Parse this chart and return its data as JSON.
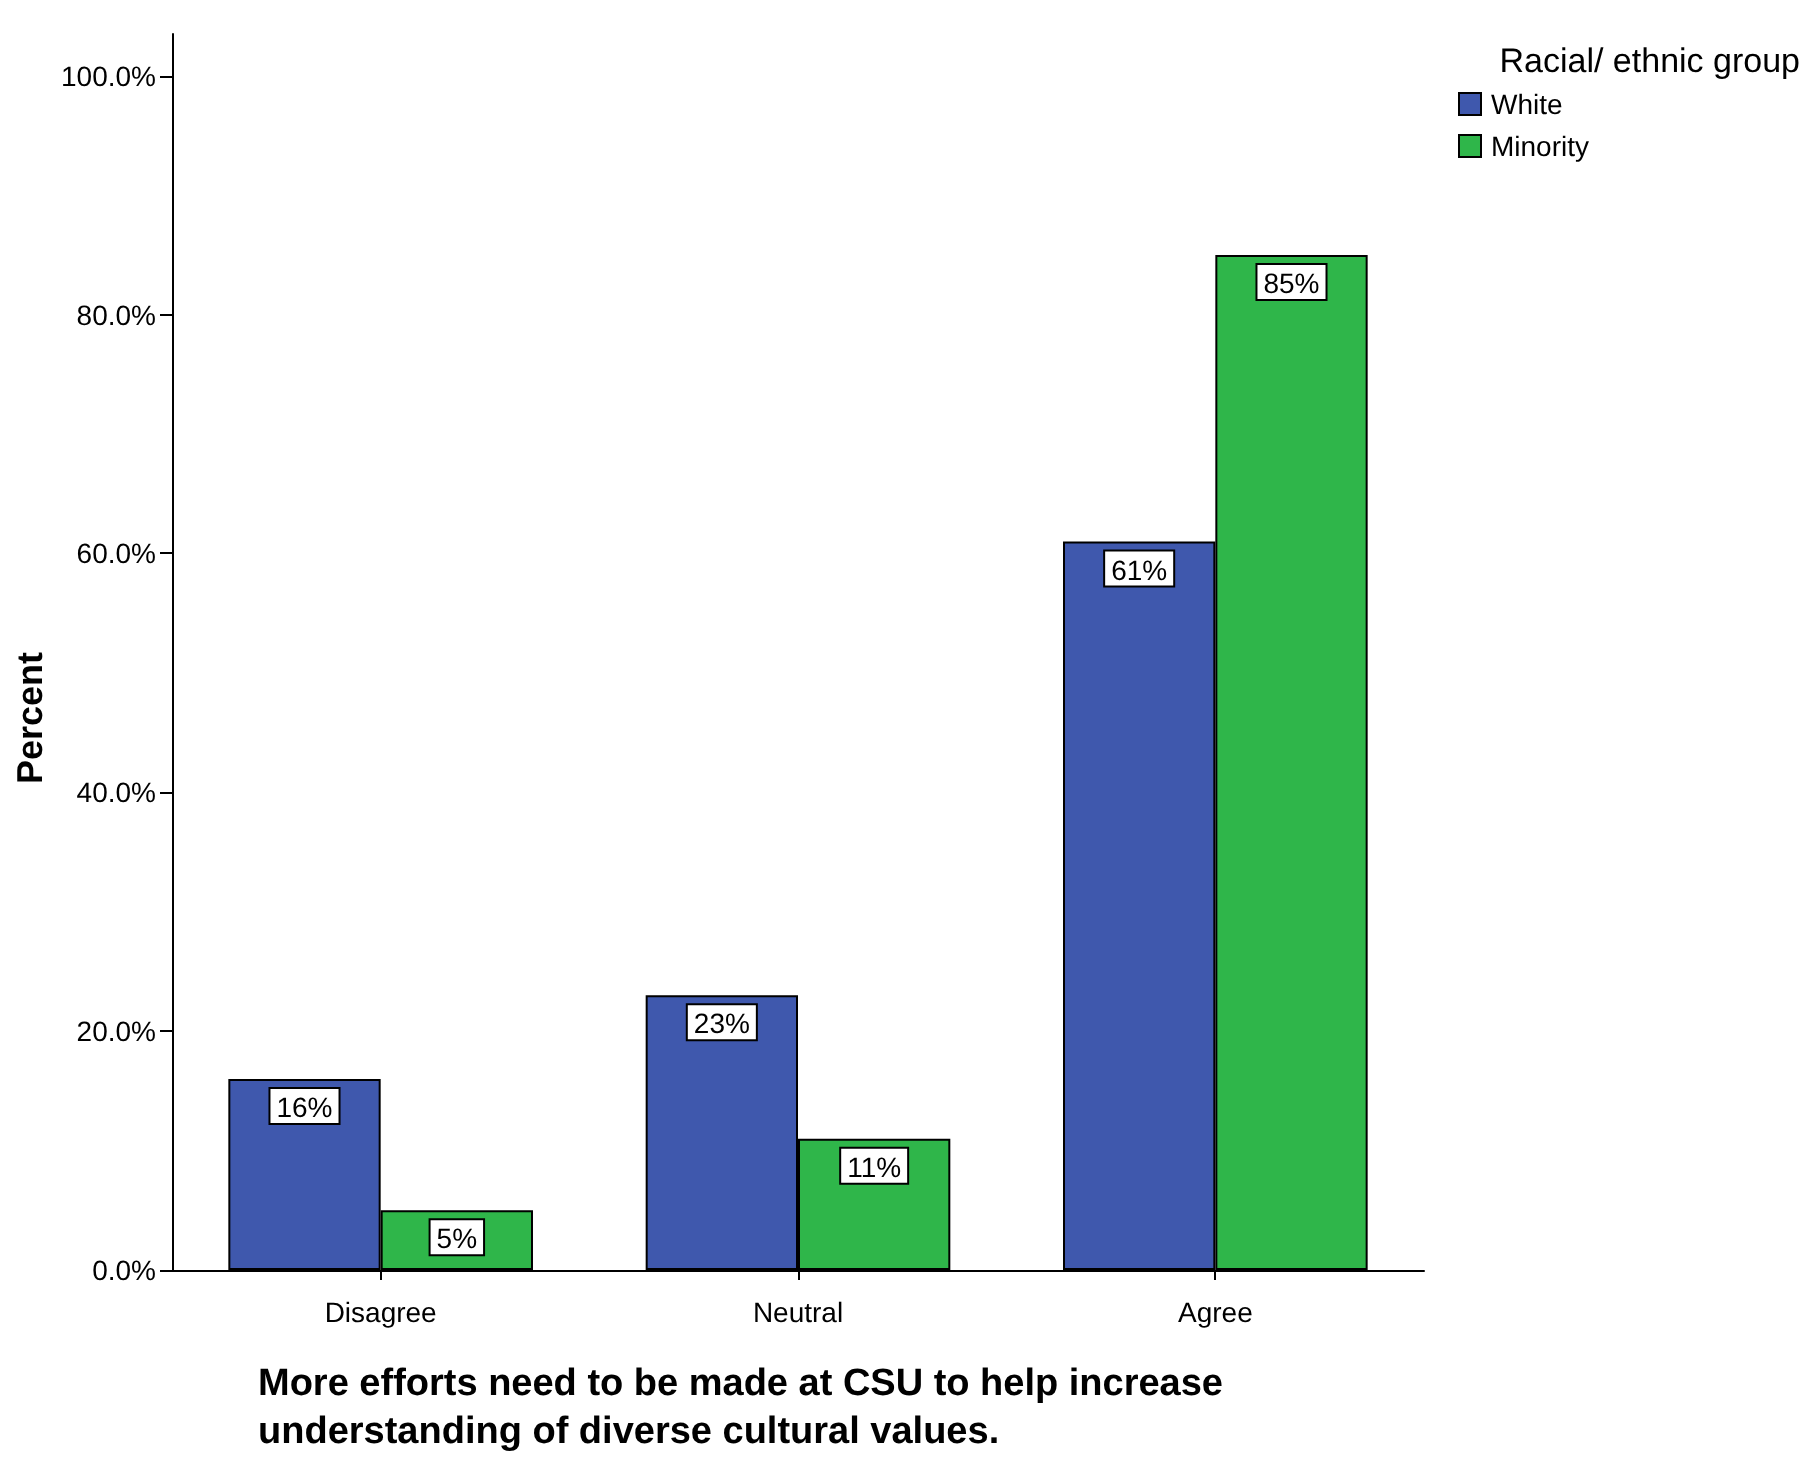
{
  "chart_data": {
    "type": "bar",
    "xlabel": "More efforts need to be made at CSU to help increase understanding of diverse cultural values.",
    "ylabel": "Percent",
    "legend_title": "Racial/ ethnic group",
    "categories": [
      "Disagree",
      "Neutral",
      "Agree"
    ],
    "series": [
      {
        "name": "White",
        "color": "#3f58ad",
        "values": [
          16,
          23,
          61
        ],
        "value_labels": [
          "16%",
          "23%",
          "61%"
        ]
      },
      {
        "name": "Minority",
        "color": "#2fb64a",
        "values": [
          5,
          11,
          85
        ],
        "value_labels": [
          "5%",
          "11%",
          "85%"
        ]
      }
    ],
    "ylim": [
      0,
      103.5
    ],
    "yticks": [
      {
        "value": 0,
        "label": "0.0%"
      },
      {
        "value": 20,
        "label": "20.0%"
      },
      {
        "value": 40,
        "label": "40.0%"
      },
      {
        "value": 60,
        "label": "60.0%"
      },
      {
        "value": 80,
        "label": "80.0%"
      },
      {
        "value": 100,
        "label": "100.0%"
      }
    ],
    "grid": false,
    "legend": "top right"
  }
}
